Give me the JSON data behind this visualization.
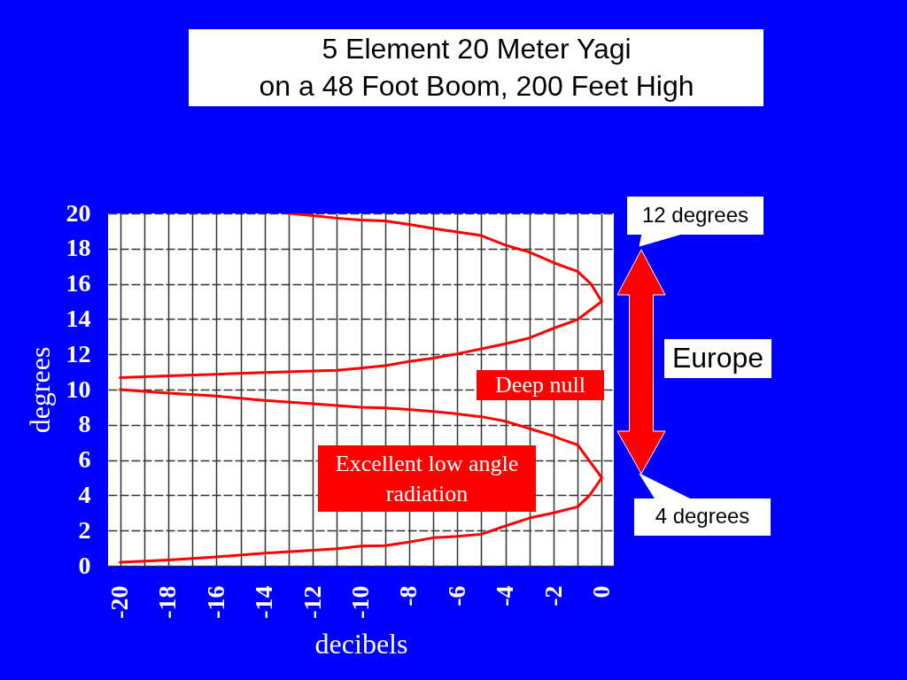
{
  "chart_data": {
    "type": "line",
    "title": "5 Element 20 Meter Yagi\non a 48 Foot Boom, 200 Feet High",
    "xlabel": "decibels",
    "ylabel": "degrees",
    "annotations": [
      "Excellent low angle radiation",
      "Deep null",
      "12 degrees",
      "4 degrees",
      "Europe"
    ],
    "series": [
      {
        "color": "#ff0000",
        "x": [
          -20,
          -18,
          -16,
          -14,
          -12,
          -11,
          -10,
          -9,
          -8,
          -7,
          -6,
          -5,
          -4,
          -3,
          -2,
          -1,
          -0.5,
          0,
          -1,
          -1.8,
          -2,
          -3,
          -4,
          -5,
          -6,
          -7,
          -8,
          -9,
          -10,
          -11,
          -12,
          -14,
          -16,
          -18,
          -20
        ],
        "values": [
          0.2,
          0.33,
          0.5,
          0.72,
          0.88,
          0.97,
          1.12,
          1.14,
          1.34,
          1.59,
          1.67,
          1.79,
          2.26,
          2.71,
          3.0,
          3.35,
          4.0,
          5.0,
          6.86,
          7.24,
          7.37,
          7.79,
          8.2,
          8.46,
          8.62,
          8.76,
          8.87,
          8.96,
          9.0,
          9.1,
          9.2,
          9.38,
          9.63,
          9.8,
          10.0
        ]
      },
      {
        "color": "#ff0000",
        "x": [
          -20,
          -18,
          -16,
          -14,
          -12,
          -11,
          -10,
          -9,
          -8,
          -7,
          -6,
          -5,
          -4,
          -3,
          -2,
          -1,
          0,
          -0.45,
          -1,
          -2,
          -3,
          -4,
          -5,
          -6,
          -7,
          -8,
          -9,
          -10,
          -11,
          -12,
          -13
        ],
        "values": [
          10.68,
          10.78,
          10.87,
          10.97,
          11.05,
          11.09,
          11.22,
          11.36,
          11.6,
          11.78,
          12.03,
          12.31,
          12.6,
          12.93,
          13.48,
          13.98,
          15.0,
          16.0,
          16.7,
          17.2,
          17.8,
          18.2,
          18.74,
          18.94,
          19.15,
          19.37,
          19.57,
          19.62,
          19.73,
          19.87,
          20.0
        ]
      }
    ],
    "xlim": [
      -20.5,
      0.5
    ],
    "ylim": [
      0,
      20
    ],
    "xticks": [
      -20,
      {
        "value": -19,
        "label": null
      },
      -18,
      {
        "value": -17,
        "label": null
      },
      -16,
      {
        "value": -15,
        "label": null
      },
      -14,
      {
        "value": -13,
        "label": null
      },
      -12,
      {
        "value": -11,
        "label": null
      },
      -10,
      {
        "value": -9,
        "label": null
      },
      -8,
      {
        "value": -7,
        "label": null
      },
      -6,
      {
        "value": -5,
        "label": null
      },
      -4,
      {
        "value": -3,
        "label": null
      },
      -2,
      {
        "value": -1,
        "label": null
      },
      0
    ],
    "yticks": [
      0,
      2,
      4,
      6,
      8,
      10,
      12,
      14,
      16,
      18,
      20
    ],
    "grid": true,
    "line_style": "solid"
  }
}
